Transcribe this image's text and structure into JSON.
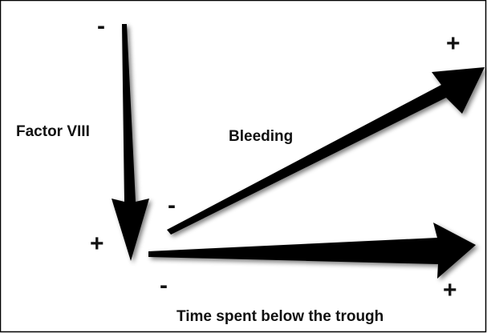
{
  "factor_arrow": {
    "label": "Factor VIII",
    "start_sign": "-",
    "end_sign": "+"
  },
  "bleeding_arrow": {
    "label": "Bleeding",
    "start_sign": "-",
    "end_sign": "+"
  },
  "time_arrow": {
    "label": "Time spent below the trough",
    "start_sign": "-",
    "end_sign": "+"
  }
}
